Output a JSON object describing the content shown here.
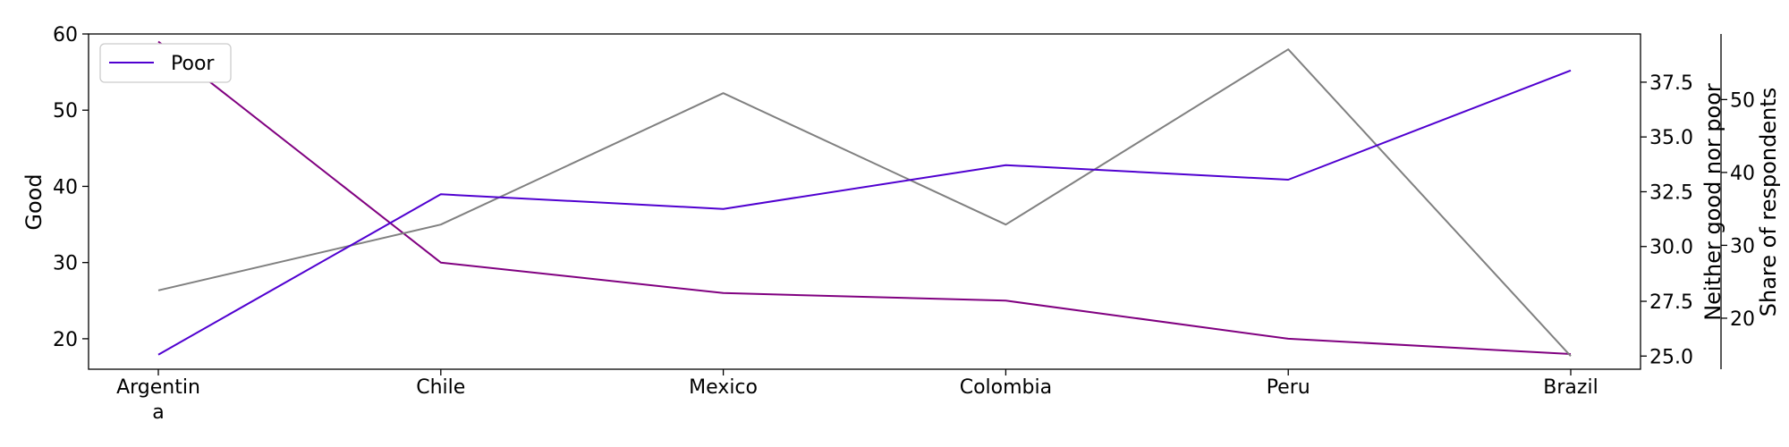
{
  "chart_data": {
    "type": "line",
    "categories": [
      "Argentina",
      "Chile",
      "Mexico",
      "Colombia",
      "Peru",
      "Brazil"
    ],
    "category_label_lines": [
      [
        "Argentin",
        "a"
      ],
      [
        "Chile"
      ],
      [
        "Mexico"
      ],
      [
        "Colombia"
      ],
      [
        "Peru"
      ],
      [
        "Brazil"
      ]
    ],
    "series": [
      {
        "name": "Good",
        "axis": "Good",
        "color": "#800080",
        "values": [
          59,
          30,
          26,
          25,
          20,
          18
        ]
      },
      {
        "name": "Neither good nor poor",
        "axis": "Neither good nor poor",
        "color": "#808080",
        "values": [
          28,
          31,
          37,
          31,
          39,
          25
        ]
      },
      {
        "name": "Poor",
        "axis": "Share of respondents",
        "color": "#5000d0",
        "values": [
          15,
          37,
          35,
          41,
          39,
          54
        ]
      }
    ],
    "axes": {
      "left": {
        "label": "Good",
        "range": [
          16,
          60
        ],
        "ticks": [
          "20",
          "30",
          "40",
          "50",
          "60"
        ],
        "tick_values": [
          20,
          30,
          40,
          50,
          60
        ]
      },
      "right1": {
        "label": "Neither good nor poor",
        "range": [
          24.4,
          39.7
        ],
        "ticks": [
          "25.0",
          "27.5",
          "30.0",
          "32.5",
          "35.0",
          "37.5"
        ],
        "tick_values": [
          25,
          27.5,
          30,
          32.5,
          35,
          37.5
        ]
      },
      "right2": {
        "label": "Share of respondents",
        "range": [
          13,
          59
        ],
        "ticks": [
          "20",
          "30",
          "40",
          "50"
        ],
        "tick_values": [
          20,
          30,
          40,
          50
        ]
      }
    },
    "legend": {
      "entries": [
        "Poor"
      ],
      "placement": "top-left"
    },
    "grid": false
  }
}
